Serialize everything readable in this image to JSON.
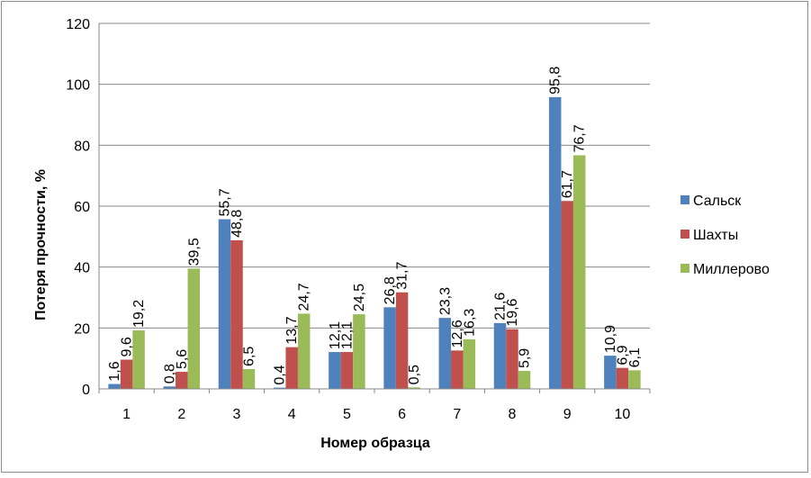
{
  "chart_data": {
    "type": "bar",
    "xlabel": "Номер образца",
    "ylabel": "Потеря прочности, %",
    "ylim": [
      0,
      120
    ],
    "yticks": [
      0,
      20,
      40,
      60,
      80,
      100,
      120
    ],
    "grid": true,
    "legend_position": "right",
    "categories": [
      "1",
      "2",
      "3",
      "4",
      "5",
      "6",
      "7",
      "8",
      "9",
      "10"
    ],
    "series": [
      {
        "name": "Сальск",
        "color": "#4f81bd",
        "values": [
          1.6,
          0.8,
          55.7,
          0.4,
          12.1,
          26.8,
          23.3,
          21.6,
          95.8,
          10.9
        ],
        "labels": [
          "1,6",
          "0,8",
          "55,7",
          "0,4",
          "12,1",
          "26,8",
          "23,3",
          "21,6",
          "95,8",
          "10,9"
        ]
      },
      {
        "name": "Шахты",
        "color": "#c0504d",
        "values": [
          9.6,
          5.6,
          48.8,
          13.7,
          12.1,
          31.7,
          12.6,
          19.6,
          61.7,
          6.9
        ],
        "labels": [
          "9,6",
          "5,6",
          "48,8",
          "13,7",
          "12,1",
          "31,7",
          "12,6",
          "19,6",
          "61,7",
          "6,9"
        ]
      },
      {
        "name": "Миллерово",
        "color": "#9bbb59",
        "values": [
          19.2,
          39.5,
          6.5,
          24.7,
          24.5,
          0.5,
          16.3,
          5.9,
          76.7,
          6.1
        ],
        "labels": [
          "19,2",
          "39,5",
          "6,5",
          "24,7",
          "24,5",
          "0,5",
          "16,3",
          "5,9",
          "76,7",
          "6,1"
        ]
      }
    ]
  }
}
